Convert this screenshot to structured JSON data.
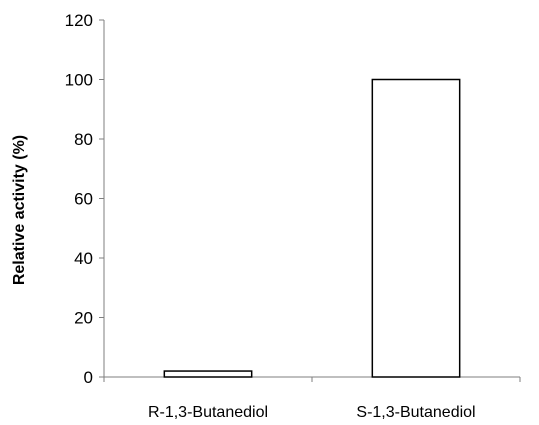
{
  "chart_data": {
    "type": "bar",
    "categories": [
      "R-1,3-Butanediol",
      "S-1,3-Butanediol"
    ],
    "values": [
      2,
      100
    ],
    "ylabel": "Relative activity (%)",
    "xlabel": "",
    "ylim": [
      0,
      120
    ],
    "yticks": [
      0,
      20,
      40,
      60,
      80,
      100,
      120
    ],
    "grid": false,
    "colors": {
      "bar_fill": "#ffffff",
      "bar_stroke": "#000000",
      "axis": "#7f7f7f"
    }
  }
}
